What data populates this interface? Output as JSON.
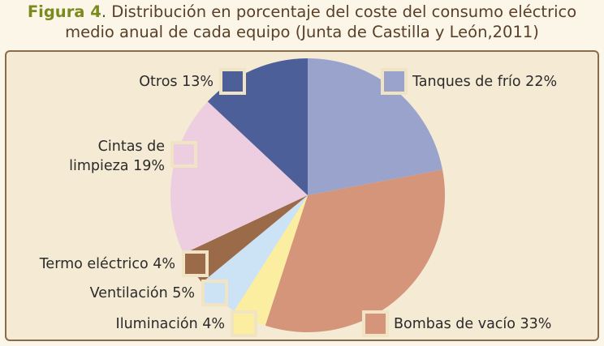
{
  "caption": {
    "label": "Figura 4",
    "line1": ". Distribución en porcentaje del coste del consumo eléctrico",
    "line2": "medio anual de cada equipo (Junta de Castilla y León,2011)"
  },
  "chart_data": {
    "type": "pie",
    "title": "",
    "slices": [
      {
        "label": "Tanques de frío 22%",
        "name": "Tanques de frío",
        "value": 22,
        "color": "#9aa3cc"
      },
      {
        "label": "Bombas de vacío 33%",
        "name": "Bombas de vacío",
        "value": 33,
        "color": "#d4957a"
      },
      {
        "label": "Iluminación 4%",
        "name": "Iluminación",
        "value": 4,
        "color": "#fbeea0"
      },
      {
        "label": "Ventilación 5%",
        "name": "Ventilación",
        "value": 5,
        "color": "#cce3f5"
      },
      {
        "label": "Termo eléctrico 4%",
        "name": "Termo eléctrico",
        "value": 4,
        "color": "#9b6a48"
      },
      {
        "label": "Cintas de limpieza 19%",
        "name": "Cintas de limpieza",
        "value": 19,
        "color": "#edcde0",
        "label_lines": [
          "Cintas de",
          "limpieza 19%"
        ]
      },
      {
        "label": "Otros 13%",
        "name": "Otros",
        "value": 13,
        "color": "#4d5f98"
      }
    ],
    "legend": "labels beside pie with color swatches"
  }
}
